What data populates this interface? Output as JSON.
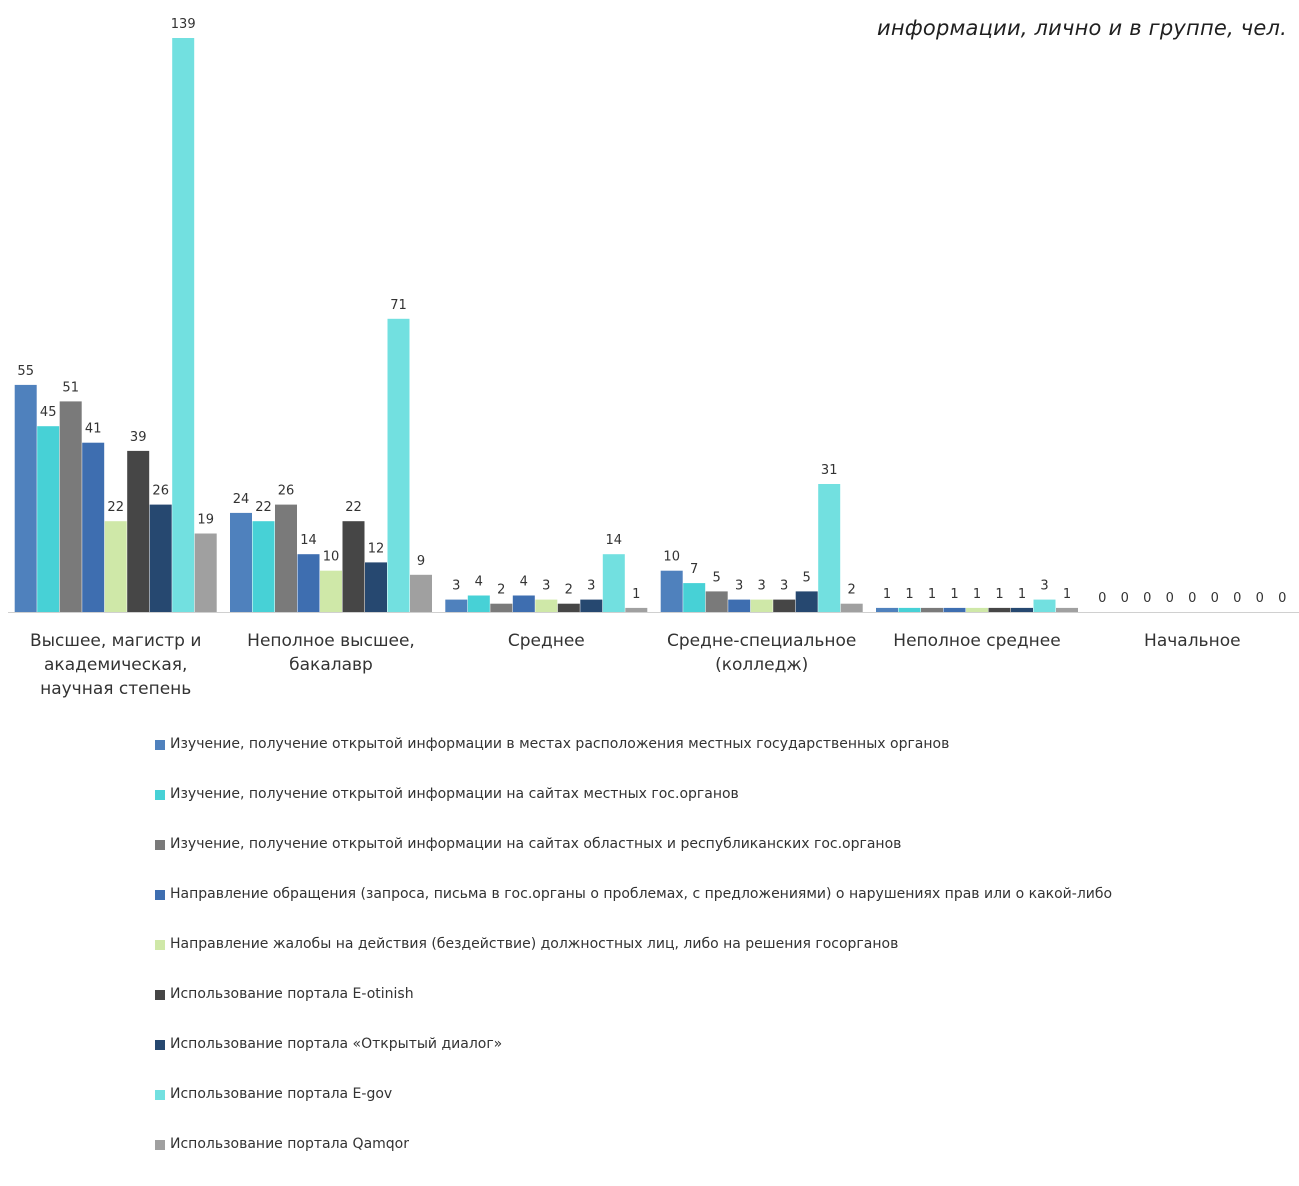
{
  "title": "информации, лично и в группе, чел.",
  "chart_data": {
    "type": "bar",
    "title": "информации, лично и в группе, чел.",
    "categories": [
      [
        "Высшее, магистр и",
        "академическая,",
        "научная степень"
      ],
      [
        "Неполное высшее,",
        "бакалавр"
      ],
      [
        "Среднее"
      ],
      [
        "Средне-специальное",
        "(колледж)"
      ],
      [
        "Неполное среднее"
      ],
      [
        "Начальное"
      ]
    ],
    "ylim": [
      0,
      139
    ],
    "grid": false,
    "legend_position": "bottom",
    "series": [
      {
        "name": "Изучение, получение открытой информации в местах расположения местных государственных органов",
        "color": "#4f81bd",
        "values": [
          55,
          24,
          3,
          10,
          1,
          0
        ]
      },
      {
        "name": "Изучение, получение открытой информации на сайтах местных гос.органов",
        "color": "#47d1d6",
        "values": [
          45,
          22,
          4,
          7,
          1,
          0
        ]
      },
      {
        "name": "Изучение, получение открытой информации на сайтах областных и республиканских гос.органов",
        "color": "#7a7a7a",
        "values": [
          51,
          26,
          2,
          5,
          1,
          0
        ]
      },
      {
        "name": "Направление обращения (запроса, письма в гос.органы о проблемах, с предложениями) о нарушениях прав или о какой-либо",
        "color": "#3e6eb0",
        "values": [
          41,
          14,
          4,
          3,
          1,
          0
        ]
      },
      {
        "name": "Направление жалобы на действия (бездействие) должностных лиц, либо на решения госорганов",
        "color": "#cfe8a8",
        "values": [
          22,
          10,
          3,
          3,
          1,
          0
        ]
      },
      {
        "name": "Использование портала E-otinish",
        "color": "#464646",
        "values": [
          39,
          22,
          2,
          3,
          1,
          0
        ]
      },
      {
        "name": "Использование портала «Открытый диалог»",
        "color": "#264870",
        "values": [
          26,
          12,
          3,
          5,
          1,
          0
        ]
      },
      {
        "name": "Использование портала E-gov",
        "color": "#72e0e0",
        "values": [
          139,
          71,
          14,
          31,
          3,
          0
        ]
      },
      {
        "name": "Использование портала Qamqor",
        "color": "#a0a0a0",
        "values": [
          19,
          9,
          1,
          2,
          1,
          0
        ]
      }
    ]
  }
}
